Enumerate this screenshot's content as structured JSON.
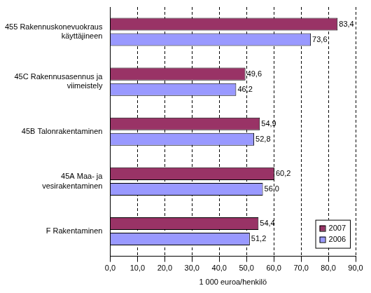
{
  "chart_data": {
    "type": "bar",
    "orientation": "horizontal",
    "x_label": "1 000 euroa/henkilö",
    "categories": [
      "455 Rakennuskonevuokraus käyttäjineen",
      "45C Rakennusasennus ja viimeistely",
      "45B Talonrakentaminen",
      "45A Maa- ja vesirakentaminen",
      "F Rakentaminen"
    ],
    "series": [
      {
        "name": "2007",
        "color": "#993366",
        "values": [
          83.4,
          49.6,
          54.9,
          60.2,
          54.4
        ],
        "value_labels": [
          "83,4",
          "49,6",
          "54,9",
          "60,2",
          "54,4"
        ]
      },
      {
        "name": "2006",
        "color": "#9999ff",
        "values": [
          73.6,
          46.2,
          52.8,
          56.0,
          51.2
        ],
        "value_labels": [
          "73,6",
          "46,2",
          "52,8",
          "56,0",
          "51,2"
        ]
      }
    ],
    "xlim": [
      0,
      90
    ],
    "xticks": [
      {
        "value": 0,
        "label": "0,0"
      },
      {
        "value": 10,
        "label": "10,0"
      },
      {
        "value": 20,
        "label": "20,0"
      },
      {
        "value": 30,
        "label": "30,0"
      },
      {
        "value": 40,
        "label": "40,0"
      },
      {
        "value": 50,
        "label": "50,0"
      },
      {
        "value": 60,
        "label": "60,0"
      },
      {
        "value": 70,
        "label": "70,0"
      },
      {
        "value": 80,
        "label": "80,0"
      },
      {
        "value": 90,
        "label": "90,0"
      }
    ],
    "grid": true,
    "legend": "lower right",
    "data_labels": true
  }
}
